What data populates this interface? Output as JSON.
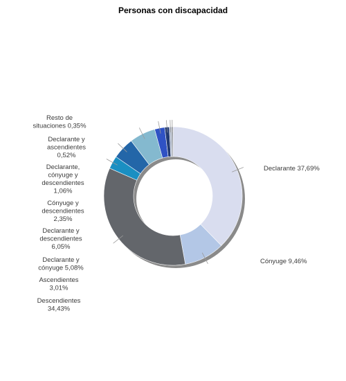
{
  "chart_data": {
    "type": "pie",
    "title": "Personas con discapacidad",
    "legend": "none",
    "slices": [
      {
        "label_lines": [
          "Declarante 37,69%"
        ],
        "value": 37.69,
        "color": "#d9ddef"
      },
      {
        "label_lines": [
          "Cónyuge 9,46%"
        ],
        "value": 9.46,
        "color": "#b3c7e6"
      },
      {
        "label_lines": [
          "Descendientes",
          "34,43%"
        ],
        "value": 34.43,
        "color": "#63666b"
      },
      {
        "label_lines": [
          "Ascendientes",
          "3,01%"
        ],
        "value": 3.01,
        "color": "#1a8fc2"
      },
      {
        "label_lines": [
          "Declarante y",
          "cónyuge 5,08%"
        ],
        "value": 5.08,
        "color": "#2366a8"
      },
      {
        "label_lines": [
          "Declarante y",
          "descendientes",
          "6,05%"
        ],
        "value": 6.05,
        "color": "#84b9cf"
      },
      {
        "label_lines": [
          "Cónyuge y",
          "descendientes",
          "2,35%"
        ],
        "value": 2.35,
        "color": "#2f52c4"
      },
      {
        "label_lines": [
          "Declarante,",
          "cónyuge y",
          "descendientes",
          "1,06%"
        ],
        "value": 1.06,
        "color": "#223a72"
      },
      {
        "label_lines": [
          "Declarante y",
          "ascendientes",
          "0,52%"
        ],
        "value": 0.52,
        "color": "#aab4c8"
      },
      {
        "label_lines": [
          "Resto de",
          "situaciones 0,35%"
        ],
        "value": 0.35,
        "color": "#7a7f88"
      }
    ]
  }
}
